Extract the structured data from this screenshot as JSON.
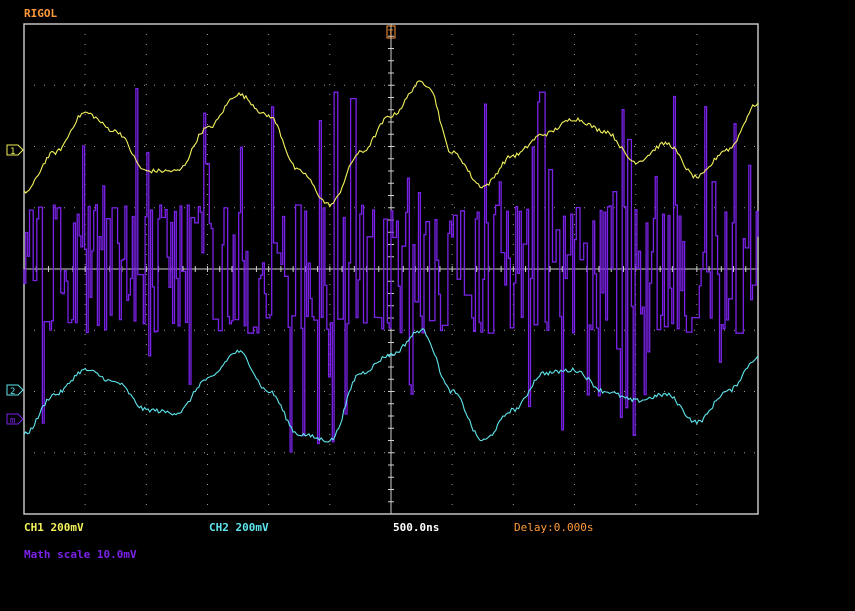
{
  "brand": "RIGOL",
  "colors": {
    "brand": "#ff9a3c",
    "ch1": "#f2f25a",
    "ch2": "#5ee6ee",
    "math": "#7a22e8",
    "grid": "#9a9a9a",
    "frame": "#d0d0d0",
    "delay": "#ff9a3c",
    "timebase": "#ffffff"
  },
  "markers": {
    "ch1": "1",
    "ch2": "2",
    "math": "m",
    "trigger": "T"
  },
  "status": {
    "ch1": "CH1 200mV",
    "ch2": "CH2 200mV",
    "timebase": "500.0ns",
    "delay": "Delay:0.000s",
    "math": "Math scale 10.0mV"
  },
  "screen": {
    "h_divisions": 12,
    "v_divisions": 8
  },
  "chart_data": {
    "type": "line",
    "x_unit": "div",
    "y_unit": "div",
    "xlim": [
      -6,
      6
    ],
    "ylim": [
      -4,
      4
    ],
    "series": [
      {
        "name": "CH1",
        "x": [
          -6,
          -5.5,
          -5,
          -4.5,
          -4,
          -3.5,
          -3,
          -2.5,
          -2,
          -1.5,
          -1,
          -0.5,
          0,
          0.5,
          0.6,
          1,
          1.5,
          2,
          2.5,
          3,
          3.5,
          4,
          4.5,
          5,
          5.5,
          6
        ],
        "y": [
          1.25,
          1.9,
          2.55,
          2.25,
          1.6,
          1.6,
          2.3,
          2.85,
          2.5,
          1.6,
          1.05,
          1.9,
          2.5,
          3.05,
          3.0,
          1.9,
          1.35,
          1.85,
          2.2,
          2.45,
          2.25,
          1.75,
          2.05,
          1.5,
          1.95,
          2.7
        ]
      },
      {
        "name": "CH2",
        "x": [
          -6,
          -5.5,
          -5,
          -4.5,
          -4,
          -3.5,
          -3,
          -2.5,
          -2,
          -1.5,
          -1,
          -0.5,
          0,
          0.5,
          1,
          1.5,
          2,
          2.5,
          3,
          3.5,
          4,
          4.5,
          5,
          5.5,
          6
        ],
        "y": [
          -2.7,
          -2.05,
          -1.65,
          -1.85,
          -2.3,
          -2.35,
          -1.8,
          -1.35,
          -2.0,
          -2.7,
          -2.8,
          -1.7,
          -1.4,
          -1.0,
          -2.0,
          -2.8,
          -2.3,
          -1.7,
          -1.65,
          -2.0,
          -2.15,
          -2.05,
          -2.5,
          -2.0,
          -1.45
        ]
      },
      {
        "name": "Math",
        "x": [
          -6,
          -5,
          -4,
          -3,
          -2,
          -1,
          0,
          1,
          2,
          3,
          4,
          5,
          6
        ],
        "y": [
          0,
          0.5,
          -0.5,
          0.8,
          -0.6,
          0.3,
          0,
          0.7,
          -0.4,
          0.5,
          -0.7,
          0.2,
          0
        ],
        "band": [
          -1.0,
          1.0
        ]
      }
    ]
  }
}
